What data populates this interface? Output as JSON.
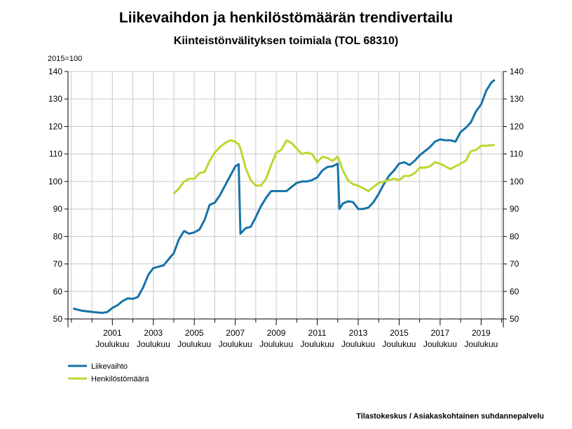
{
  "chart_data": {
    "type": "line",
    "title": "Liikevaihdon ja henkilöstömäärän trendivertailu",
    "subtitle": "Kiinteistönvälityksen toimiala (TOL 68310)",
    "ylabel": "2015=100",
    "source": "Tilastokeskus / Asiakaskohtainen suhdannepalvelu",
    "x": [
      "2000-01",
      "2000-06",
      "2001-01",
      "2001-06",
      "2001-09",
      "2001-12",
      "2002-03",
      "2002-06",
      "2002-09",
      "2002-12",
      "2003-03",
      "2003-06",
      "2003-09",
      "2003-12",
      "2004-06",
      "2004-12",
      "2005-03",
      "2005-06",
      "2005-09",
      "2005-12",
      "2006-03",
      "2006-06",
      "2006-09",
      "2006-12",
      "2007-03",
      "2007-06",
      "2007-09",
      "2007-12",
      "2008-02",
      "2008-03",
      "2008-06",
      "2008-09",
      "2008-12",
      "2009-03",
      "2009-06",
      "2009-09",
      "2009-12",
      "2010-03",
      "2010-06",
      "2010-09",
      "2010-12",
      "2011-03",
      "2011-06",
      "2011-09",
      "2011-12",
      "2012-03",
      "2012-06",
      "2012-09",
      "2012-12",
      "2013-01",
      "2013-03",
      "2013-06",
      "2013-09",
      "2013-12",
      "2014-03",
      "2014-06",
      "2014-09",
      "2014-12",
      "2015-03",
      "2015-06",
      "2015-09",
      "2015-12",
      "2016-03",
      "2016-06",
      "2016-09",
      "2016-12",
      "2017-03",
      "2017-06",
      "2017-09",
      "2017-12",
      "2018-03",
      "2018-06",
      "2018-09",
      "2018-12",
      "2019-03",
      "2019-06",
      "2019-09",
      "2019-12",
      "2020-03",
      "2020-06",
      "2020-08"
    ],
    "series": [
      {
        "name": "Liikevaihto",
        "color": "#1673a8",
        "values": [
          53.8,
          53,
          52.5,
          52.2,
          52.5,
          54,
          55,
          56.5,
          57.5,
          57.3,
          58,
          61.5,
          66,
          68.5,
          69.5,
          74,
          79,
          82,
          81,
          81.5,
          82.5,
          86,
          91.5,
          92.3,
          95,
          98.5,
          102,
          105.5,
          106.3,
          81,
          83,
          83.5,
          87,
          91,
          94,
          96.5,
          96.5,
          96.5,
          96.5,
          98,
          99.5,
          100,
          100,
          100.5,
          101.5,
          104,
          105.3,
          105.5,
          106.5,
          90,
          92,
          92.8,
          92.5,
          90,
          90,
          90.5,
          92.5,
          95.5,
          99,
          102,
          104,
          106.5,
          107,
          106,
          107.5,
          109.5,
          111,
          112.5,
          114.5,
          115.3,
          115,
          115,
          114.5,
          118,
          119.5,
          121.5,
          125.5,
          128,
          133,
          136,
          137
        ]
      },
      {
        "name": "Henkilöstömäärä",
        "color": "#bdd630",
        "values": [
          null,
          null,
          null,
          null,
          null,
          null,
          null,
          null,
          null,
          null,
          null,
          null,
          null,
          null,
          null,
          95.5,
          97.5,
          100,
          101,
          101,
          103,
          103.5,
          107.5,
          110.5,
          112.5,
          114,
          115,
          114.5,
          113.5,
          112,
          105,
          100.5,
          98.5,
          98.5,
          101,
          106,
          110.5,
          111.5,
          115,
          114,
          112,
          110,
          110.5,
          110,
          107,
          109,
          108.5,
          107.5,
          109,
          107.5,
          104,
          100.5,
          99,
          98.5,
          97.5,
          96.5,
          98,
          99.5,
          100,
          100.5,
          101,
          100.5,
          102,
          102,
          103,
          105,
          105,
          105.5,
          107,
          106.5,
          105.5,
          104.5,
          105.5,
          106.5,
          107.5,
          111,
          111.5,
          113,
          113,
          113.2,
          113.3
        ]
      }
    ],
    "xlim": [
      "1999-10",
      "2021-01"
    ],
    "xticks": [
      {
        "value": "2001-12",
        "label": [
          "2001",
          "Joulukuu"
        ]
      },
      {
        "value": "2003-12",
        "label": [
          "2003",
          "Joulukuu"
        ]
      },
      {
        "value": "2005-12",
        "label": [
          "2005",
          "Joulukuu"
        ]
      },
      {
        "value": "2007-12",
        "label": [
          "2007",
          "Joulukuu"
        ]
      },
      {
        "value": "2009-12",
        "label": [
          "2009",
          "Joulukuu"
        ]
      },
      {
        "value": "2011-12",
        "label": [
          "2011",
          "Joulukuu"
        ]
      },
      {
        "value": "2013-12",
        "label": [
          "2013",
          "Joulukuu"
        ]
      },
      {
        "value": "2015-12",
        "label": [
          "2015",
          "Joulukuu"
        ]
      },
      {
        "value": "2017-12",
        "label": [
          "2017",
          "Joulukuu"
        ]
      },
      {
        "value": "2019-12",
        "label": [
          "2019",
          "Joulukuu"
        ]
      }
    ],
    "xminor_ticks": [
      "1999-12",
      "2000-12",
      "2002-12",
      "2004-12",
      "2006-12",
      "2008-12",
      "2010-12",
      "2012-12",
      "2014-12",
      "2016-12",
      "2018-12",
      "2020-12"
    ],
    "ylim": [
      50,
      140
    ],
    "yticks": [
      50,
      60,
      70,
      80,
      90,
      100,
      110,
      120,
      130,
      140
    ],
    "y2lim": [
      50,
      140
    ],
    "y2ticks": [
      50,
      60,
      70,
      80,
      90,
      100,
      110,
      120,
      130,
      140
    ],
    "grid": true,
    "legend": "bottom-left"
  }
}
